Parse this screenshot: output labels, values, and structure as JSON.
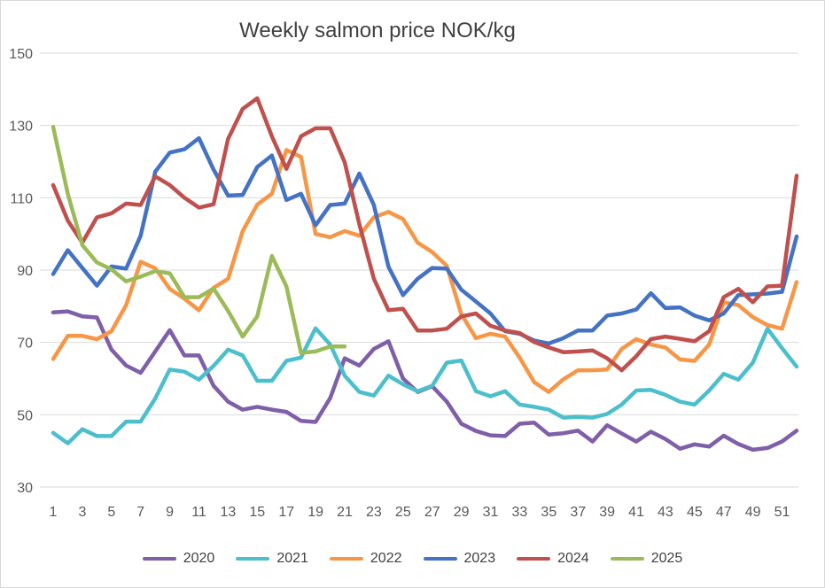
{
  "chart_data": {
    "type": "line",
    "title": "Weekly salmon price NOK/kg",
    "xlabel": "",
    "ylabel": "",
    "ylim": [
      30,
      150
    ],
    "yticks": [
      30,
      50,
      70,
      90,
      110,
      130,
      150
    ],
    "xlim": [
      1,
      52
    ],
    "xticks": [
      1,
      3,
      5,
      7,
      9,
      11,
      13,
      15,
      17,
      19,
      21,
      23,
      25,
      27,
      29,
      31,
      33,
      35,
      37,
      39,
      41,
      43,
      45,
      47,
      49,
      51
    ],
    "grid": "horizontal",
    "legend_position": "bottom",
    "series": [
      {
        "name": "2020",
        "color": "#7f5fa8",
        "x_start": 1,
        "values": [
          78.3,
          78.6,
          77.2,
          76.9,
          68.0,
          63.6,
          61.6,
          67.5,
          73.4,
          66.4,
          66.4,
          58.0,
          53.6,
          51.4,
          52.2,
          51.4,
          50.8,
          48.3,
          48.0,
          54.6,
          65.6,
          63.6,
          68.2,
          70.3,
          60.0,
          56.3,
          57.9,
          53.6,
          47.5,
          45.5,
          44.3,
          44.1,
          47.5,
          47.8,
          44.5,
          44.9,
          45.6,
          42.6,
          47.1,
          44.8,
          42.6,
          45.3,
          43.3,
          40.6,
          41.8,
          41.2,
          44.2,
          41.9,
          40.3,
          40.8,
          42.6,
          45.6
        ]
      },
      {
        "name": "2021",
        "color": "#4bbfcc",
        "x_start": 1,
        "values": [
          45.0,
          42.1,
          46.0,
          44.1,
          44.1,
          48.1,
          48.1,
          54.5,
          62.5,
          61.9,
          59.7,
          63.5,
          68.0,
          66.4,
          59.4,
          59.4,
          64.9,
          65.8,
          73.9,
          69.4,
          60.8,
          56.3,
          55.3,
          60.8,
          58.4,
          56.5,
          58.0,
          64.4,
          65.0,
          56.5,
          55.1,
          56.5,
          52.8,
          52.2,
          51.4,
          49.2,
          49.4,
          49.2,
          50.2,
          52.8,
          56.7,
          56.9,
          55.5,
          53.6,
          52.8,
          56.7,
          61.3,
          59.7,
          64.4,
          73.8,
          68.4,
          63.3
        ]
      },
      {
        "name": "2022",
        "color": "#f79646",
        "x_start": 1,
        "values": [
          65.4,
          71.8,
          71.8,
          70.9,
          73.1,
          80.3,
          92.3,
          90.5,
          84.8,
          82.1,
          78.9,
          85.1,
          87.6,
          100.8,
          108.1,
          111.1,
          123.2,
          121.3,
          100.0,
          99.1,
          100.8,
          99.5,
          104.6,
          106.1,
          104.1,
          97.6,
          95.0,
          91.2,
          77.8,
          71.2,
          72.4,
          71.6,
          65.8,
          59.0,
          56.3,
          59.8,
          62.3,
          62.3,
          62.5,
          68.2,
          70.9,
          69.4,
          68.6,
          65.3,
          64.9,
          69.4,
          81.1,
          80.3,
          77.0,
          74.8,
          73.8,
          86.7
        ]
      },
      {
        "name": "2023",
        "color": "#4472c4",
        "x_start": 1,
        "values": [
          88.9,
          95.5,
          90.6,
          85.7,
          91.0,
          90.4,
          99.5,
          117.2,
          122.5,
          123.4,
          126.5,
          117.8,
          110.6,
          110.8,
          118.5,
          121.7,
          109.4,
          111.1,
          102.4,
          108.0,
          108.4,
          116.7,
          108.0,
          90.9,
          83.1,
          87.6,
          90.6,
          90.4,
          84.6,
          81.3,
          78.0,
          73.1,
          72.4,
          70.5,
          69.7,
          71.2,
          73.3,
          73.3,
          77.4,
          78.0,
          79.1,
          83.6,
          79.5,
          79.7,
          77.4,
          76.1,
          78.0,
          83.1,
          83.3,
          83.5,
          84.0,
          99.3
        ]
      },
      {
        "name": "2024",
        "color": "#c0504d",
        "x_start": 1,
        "values": [
          113.5,
          103.7,
          97.6,
          104.6,
          105.7,
          108.4,
          108.0,
          115.9,
          113.5,
          110.0,
          107.3,
          108.2,
          126.3,
          134.6,
          137.5,
          127.0,
          118.0,
          127.0,
          129.2,
          129.2,
          119.8,
          102.7,
          87.6,
          78.9,
          79.3,
          73.3,
          73.3,
          73.8,
          77.2,
          78.0,
          74.6,
          73.3,
          72.6,
          70.1,
          68.6,
          67.3,
          67.5,
          67.8,
          65.6,
          62.3,
          66.2,
          70.9,
          71.6,
          71.0,
          70.3,
          73.1,
          82.5,
          84.8,
          81.1,
          85.5,
          85.7,
          116.1
        ]
      },
      {
        "name": "2025",
        "color": "#9bbb59",
        "x_start": 1,
        "values": [
          129.6,
          111.1,
          96.9,
          92.1,
          90.2,
          86.9,
          88.2,
          89.7,
          89.1,
          82.5,
          82.5,
          84.9,
          78.7,
          71.6,
          77.2,
          93.9,
          85.5,
          67.1,
          67.5,
          68.9,
          68.9
        ]
      }
    ]
  }
}
